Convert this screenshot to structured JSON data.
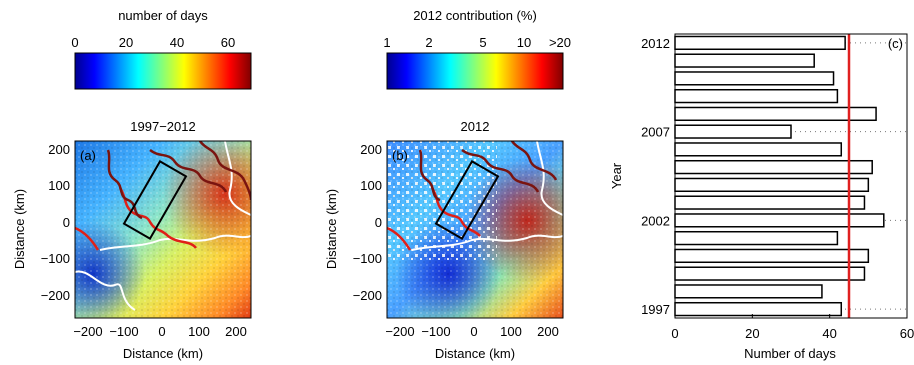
{
  "colorbars": [
    {
      "title": "number of days",
      "ticks": [
        "0",
        "20",
        "40",
        "60"
      ]
    },
    {
      "title": "2012 contribution (%)",
      "ticks": [
        "1",
        "2",
        "5",
        "10",
        ">20"
      ]
    }
  ],
  "maps": [
    {
      "title": "1997−2012",
      "panel": "(a)"
    },
    {
      "title": "2012",
      "panel": "(b)"
    }
  ],
  "map_axes": {
    "xlabel": "Distance (km)",
    "ylabel": "Distance (km)",
    "xticks": [
      "−200",
      "−100",
      "0",
      "100",
      "200"
    ],
    "yticks": [
      "200",
      "100",
      "0",
      "−100",
      "−200"
    ]
  },
  "chart_data": {
    "type": "bar",
    "orientation": "horizontal",
    "panel": "(c)",
    "title": "",
    "xlabel": "Number of days",
    "ylabel": "Year",
    "xlim": [
      0,
      60
    ],
    "xticks": [
      "0",
      "20",
      "40",
      "60"
    ],
    "yticks": [
      "1997",
      "2002",
      "2007",
      "2012"
    ],
    "categories": [
      "1997",
      "1998",
      "1999",
      "2000",
      "2001",
      "2002",
      "2003",
      "2004",
      "2005",
      "2006",
      "2007",
      "2008",
      "2009",
      "2010",
      "2011",
      "2012"
    ],
    "values": [
      43,
      38,
      49,
      50,
      42,
      54,
      49,
      50,
      51,
      43,
      30,
      52,
      42,
      41,
      36,
      44
    ],
    "reference_line": {
      "x": 45,
      "color": "#e02020"
    },
    "bar_fill": "#ffffff",
    "bar_edge": "#000000",
    "grid": "dotted horizontal at labeled years"
  }
}
